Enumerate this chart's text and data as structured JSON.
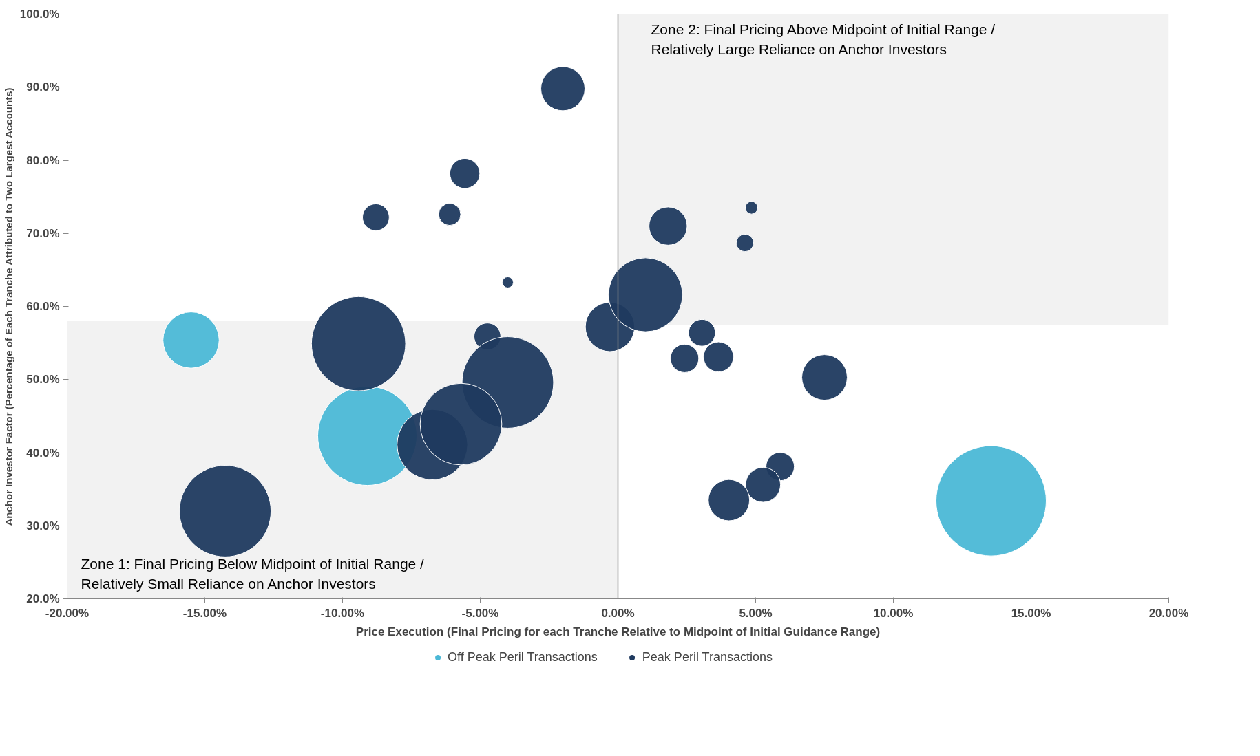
{
  "chart_data": {
    "type": "bubble",
    "xlabel": "Price Execution (Final Pricing for each Tranche Relative to Midpoint of Initial Guidance Range)",
    "ylabel": "Anchor Investor Factor (Percentage of Each Tranche Attributed to Two Largest Accounts)",
    "xlim": [
      -20,
      20
    ],
    "ylim": [
      20,
      100
    ],
    "xticks": [
      {
        "value": -20,
        "label": "-20.00%"
      },
      {
        "value": -15,
        "label": "-15.00%"
      },
      {
        "value": -10,
        "label": "-10.00%"
      },
      {
        "value": -5,
        "label": "-5.00%"
      },
      {
        "value": 0,
        "label": "0.00%"
      },
      {
        "value": 5,
        "label": "5.00%"
      },
      {
        "value": 10,
        "label": "10.00%"
      },
      {
        "value": 15,
        "label": "15.00%"
      },
      {
        "value": 20,
        "label": "20.00%"
      }
    ],
    "yticks": [
      {
        "value": 20,
        "label": "20.0%"
      },
      {
        "value": 30,
        "label": "30.0%"
      },
      {
        "value": 40,
        "label": "40.0%"
      },
      {
        "value": 50,
        "label": "50.0%"
      },
      {
        "value": 60,
        "label": "60.0%"
      },
      {
        "value": 70,
        "label": "70.0%"
      },
      {
        "value": 80,
        "label": "80.0%"
      },
      {
        "value": 90,
        "label": "90.0%"
      },
      {
        "value": 100,
        "label": "100.0%"
      }
    ],
    "grid": false,
    "ref_lines": [
      {
        "axis": "x",
        "value": 0,
        "color": "#888888"
      }
    ],
    "legend": "bottom",
    "marker": "circle",
    "bands": [
      {
        "axis": "y",
        "from": 20,
        "to": 58,
        "label": "Zone 1: Final Pricing Below Midpoint of Initial Range / Relatively Small Reliance on Anchor Investors",
        "color": "#f2f2f2"
      },
      {
        "axis": "y",
        "from": 57.5,
        "to": 100,
        "label": "Zone 2: Final Pricing Above Midpoint of Initial Range / Relatively Large Reliance on Anchor Investors",
        "color": "#f2f2f2"
      }
    ],
    "series": [
      {
        "name": "Off Peak Peril Transactions",
        "color": "#4bb8d6",
        "x": [
          -15.5,
          -9.1,
          13.55
        ],
        "values": [
          55.4,
          42.3,
          33.4
        ],
        "sizes": [
          0.26,
          0.81,
          1
        ]
      },
      {
        "name": "Peak Peril Transactions",
        "color": "#1f3a5f",
        "x": [
          -2.0,
          -5.56,
          -8.79,
          -6.11,
          -4.0,
          -9.42,
          -4.74,
          -4.0,
          -6.74,
          -5.7,
          -14.26,
          -0.29,
          1.0,
          1.82,
          4.85,
          4.61,
          3.05,
          2.42,
          3.65,
          7.5,
          5.89,
          5.27,
          4.03
        ],
        "values": [
          89.8,
          78.2,
          72.2,
          72.6,
          63.3,
          54.9,
          55.9,
          49.6,
          41.1,
          43.9,
          32.0,
          57.2,
          61.6,
          71.0,
          73.5,
          68.7,
          56.4,
          52.9,
          53.1,
          50.3,
          38.1,
          35.6,
          33.5
        ],
        "sizes": [
          0.16,
          0.074,
          0.059,
          0.04,
          0.01,
          0.73,
          0.059,
          0.69,
          0.41,
          0.55,
          0.69,
          0.2,
          0.45,
          0.12,
          0.013,
          0.025,
          0.059,
          0.066,
          0.074,
          0.17,
          0.066,
          0.1,
          0.14
        ]
      }
    ]
  }
}
